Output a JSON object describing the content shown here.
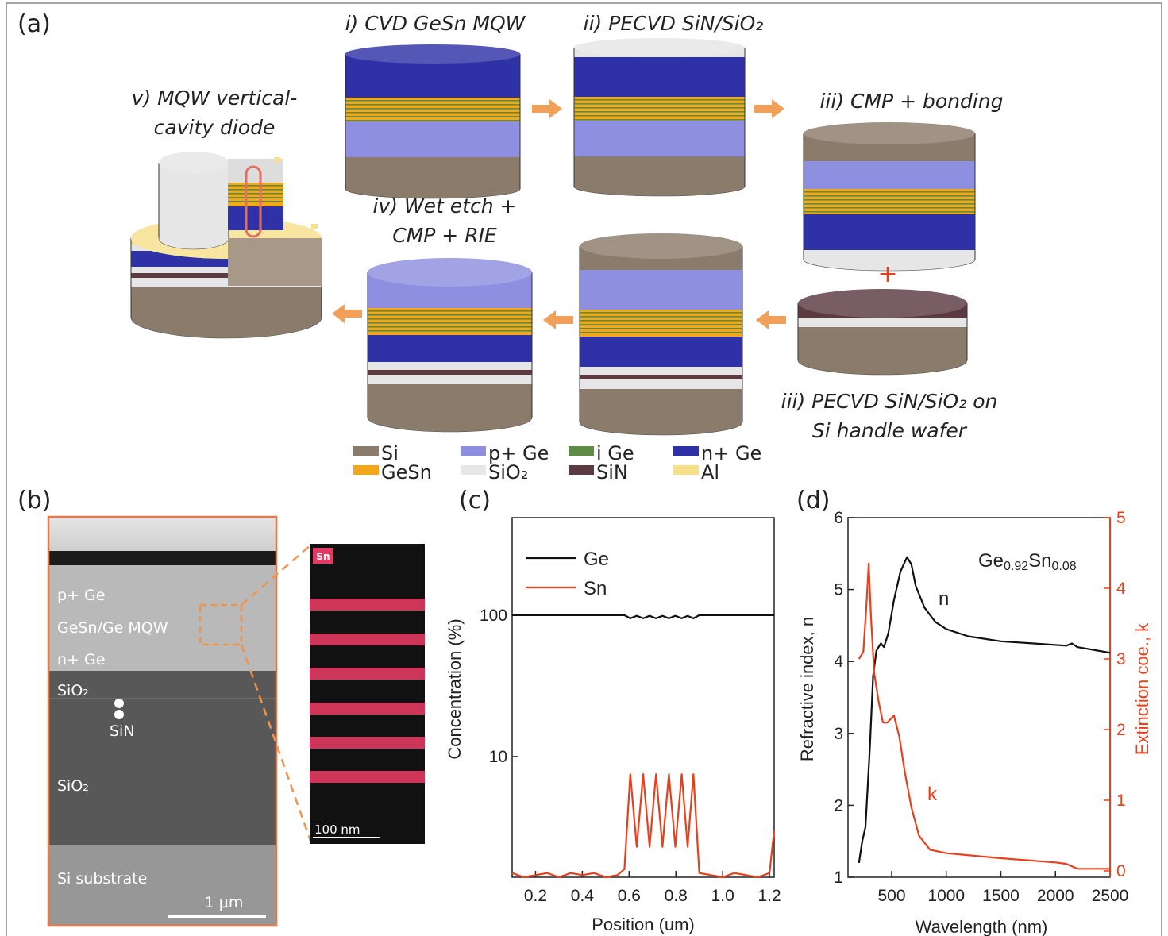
{
  "figure": {
    "panel_labels": [
      "(a)",
      "(b)",
      "(c)",
      "(d)"
    ],
    "panel_a": {
      "steps": [
        {
          "lines": [
            "i) CVD GeSn MQW"
          ]
        },
        {
          "lines": [
            "ii) PECVD SiN/SiO₂"
          ]
        },
        {
          "lines": [
            "iii) CMP + bonding"
          ]
        },
        {
          "lines": [
            "iii) PECVD SiN/SiO₂ on",
            "Si handle wafer"
          ]
        },
        {
          "lines": [
            "iv) Wet etch +",
            "CMP + RIE"
          ]
        },
        {
          "lines": [
            "v) MQW vertical-",
            "cavity diode"
          ]
        }
      ],
      "plus": "+",
      "legend": [
        {
          "name": "Si",
          "color": "#8b7b6b"
        },
        {
          "name": "p+ Ge",
          "color": "#8e8fe0"
        },
        {
          "name": "i Ge",
          "color": "#5e8c46"
        },
        {
          "name": "n+ Ge",
          "color": "#2f32a6"
        },
        {
          "name": "GeSn",
          "color": "#f2a81a"
        },
        {
          "name": "SiO₂",
          "color": "#e6e6e6"
        },
        {
          "name": "SiN",
          "color": "#5b3a42"
        },
        {
          "name": "Al",
          "color": "#f6e08c"
        }
      ]
    },
    "panel_b": {
      "labels": [
        "p+ Ge",
        "GeSn/Ge MQW",
        "n+ Ge",
        "SiO₂",
        "SiN",
        "SiO₂",
        "Si substrate"
      ],
      "scale_bar": "1 µm",
      "edx_element": "Sn",
      "edx_scale_bar": "100 nm"
    }
  },
  "chart_data": [
    {
      "type": "line",
      "x_label": "Position (um)",
      "y_label": "Concentration (%)",
      "log_y": true,
      "xlim": [
        0.1,
        1.22
      ],
      "ylim": [
        1.4,
        490
      ],
      "xticks": [
        0.2,
        0.4,
        0.6,
        0.8,
        {
          "value": 1,
          "label": "1.0"
        },
        1.2
      ],
      "yticks": [
        10,
        100
      ],
      "x": [
        0.1,
        0.15,
        0.2,
        0.25,
        0.3,
        0.35,
        0.4,
        0.45,
        0.5,
        0.55,
        0.58,
        0.605,
        0.6325,
        0.66,
        0.6875,
        0.715,
        0.7425,
        0.77,
        0.7975,
        0.825,
        0.85,
        0.875,
        0.9,
        0.95,
        1.0,
        1.05,
        1.1,
        1.15,
        1.2,
        1.22
      ],
      "series": [
        {
          "name": "Ge",
          "color": "#111111",
          "values": [
            100,
            100,
            100,
            100,
            100,
            100,
            100,
            100,
            100,
            100,
            100,
            95,
            99,
            95,
            99,
            95,
            99,
            95,
            99,
            95,
            99,
            95,
            100,
            100,
            100,
            100,
            100,
            100,
            100,
            100
          ]
        },
        {
          "name": "Sn",
          "color": "#e8401c",
          "values": [
            1.5,
            1.4,
            1.45,
            1.5,
            1.4,
            1.5,
            1.45,
            1.5,
            1.4,
            1.45,
            1.6,
            7.5,
            2.3,
            7.5,
            2.3,
            7.5,
            2.3,
            7.5,
            2.3,
            7.5,
            2.3,
            7.5,
            1.5,
            1.45,
            1.4,
            1.5,
            1.45,
            1.4,
            1.5,
            3
          ]
        }
      ]
    },
    {
      "type": "line",
      "x_label": "Wavelength (nm)",
      "y_label": "Refractive index, n",
      "y2_label": "Extinction coe., k",
      "annotation": [
        "Ge",
        "0.92",
        "Sn",
        "0.08"
      ],
      "xlim": [
        100,
        2500
      ],
      "ylim": [
        1,
        6
      ],
      "y2lim": [
        -0.09,
        5
      ],
      "xticks": [
        500,
        1000,
        1500,
        2000,
        2500
      ],
      "yticks": [
        1,
        2,
        3,
        4,
        5,
        6
      ],
      "y2ticks": [
        0,
        1,
        2,
        3,
        4,
        5
      ],
      "series": [
        {
          "name": "n",
          "color": "#111111",
          "axis": "y",
          "x": [
            200,
            230,
            260,
            300,
            330,
            360,
            400,
            430,
            470,
            520,
            580,
            640,
            680,
            720,
            800,
            900,
            1000,
            1200,
            1500,
            1800,
            2100,
            2150,
            2200,
            2500
          ],
          "values": [
            1.2,
            1.5,
            1.7,
            2.8,
            3.8,
            4.15,
            4.25,
            4.2,
            4.4,
            4.85,
            5.25,
            5.45,
            5.35,
            5.05,
            4.75,
            4.55,
            4.45,
            4.35,
            4.28,
            4.25,
            4.22,
            4.25,
            4.2,
            4.12
          ]
        },
        {
          "name": "k",
          "color": "#e8401c",
          "axis": "y2",
          "x": [
            200,
            240,
            270,
            290,
            310,
            340,
            380,
            420,
            460,
            520,
            570,
            620,
            680,
            750,
            850,
            1000,
            1500,
            2000,
            2100,
            2200,
            2500
          ],
          "values": [
            3.0,
            3.1,
            3.8,
            4.35,
            3.6,
            2.8,
            2.4,
            2.1,
            2.1,
            2.2,
            1.9,
            1.4,
            0.9,
            0.5,
            0.3,
            0.25,
            0.18,
            0.12,
            0.1,
            0.03,
            0.03
          ]
        }
      ]
    }
  ]
}
